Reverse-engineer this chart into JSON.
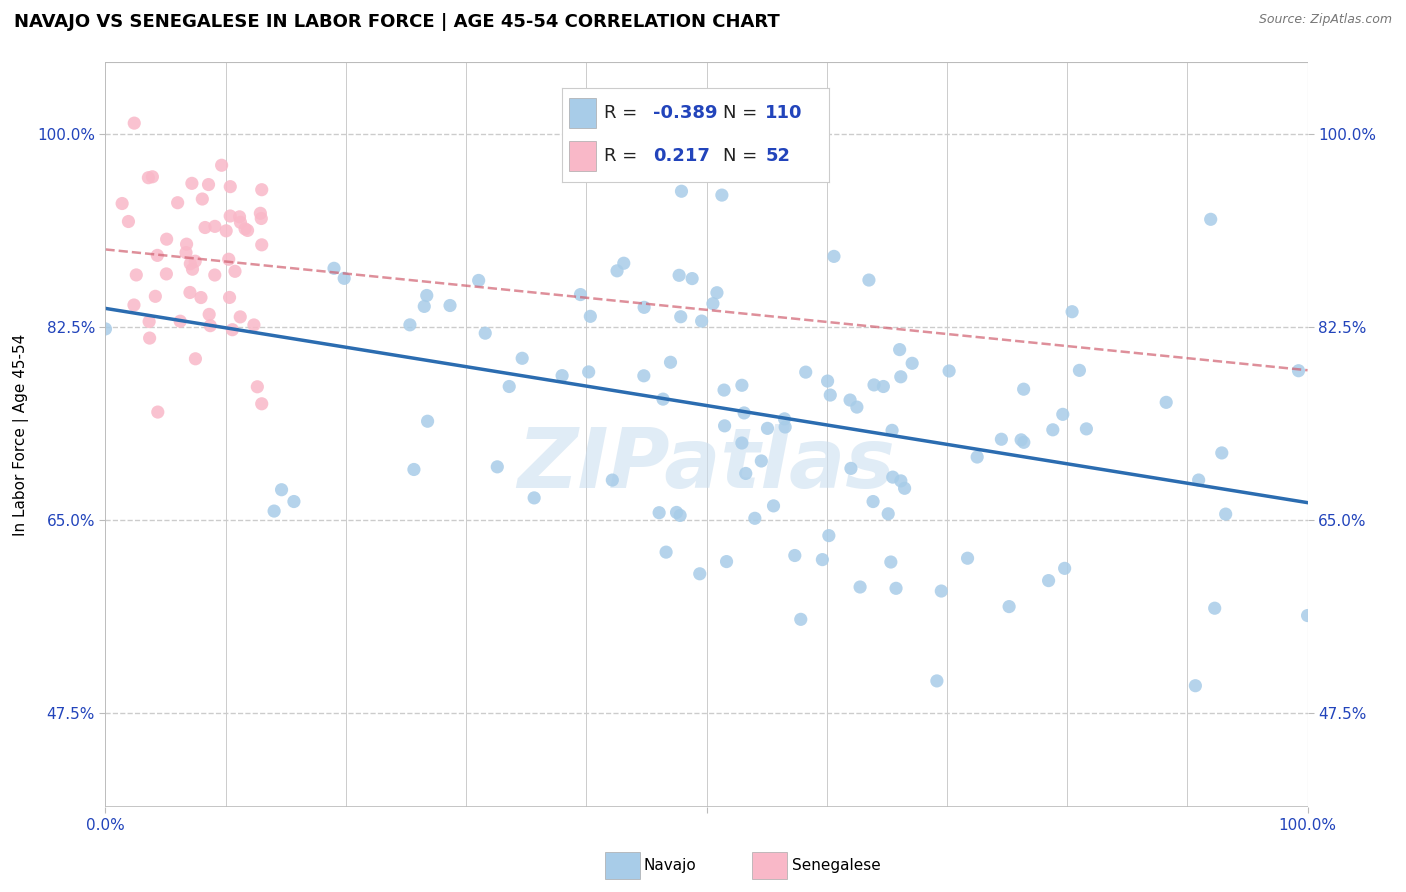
{
  "title": "NAVAJO VS SENEGALESE IN LABOR FORCE | AGE 45-54 CORRELATION CHART",
  "source": "Source: ZipAtlas.com",
  "ylabel": "In Labor Force | Age 45-54",
  "ytick_labels": [
    "47.5%",
    "65.0%",
    "82.5%",
    "100.0%"
  ],
  "ytick_values": [
    0.475,
    0.65,
    0.825,
    1.0
  ],
  "xlim": [
    0.0,
    1.0
  ],
  "ylim": [
    0.39,
    1.065
  ],
  "navajo_R": -0.389,
  "navajo_N": 110,
  "senegalese_R": 0.217,
  "senegalese_N": 52,
  "navajo_color": "#a8cce8",
  "navajo_line_color": "#2b6cb0",
  "senegalese_color": "#f9b8c8",
  "senegalese_line_color": "#d06070",
  "watermark": "ZIPatlas",
  "legend_R_color": "#2244bb",
  "background_color": "#ffffff",
  "grid_color": "#cccccc",
  "title_fontsize": 13,
  "axis_label_fontsize": 11,
  "tick_fontsize": 11
}
